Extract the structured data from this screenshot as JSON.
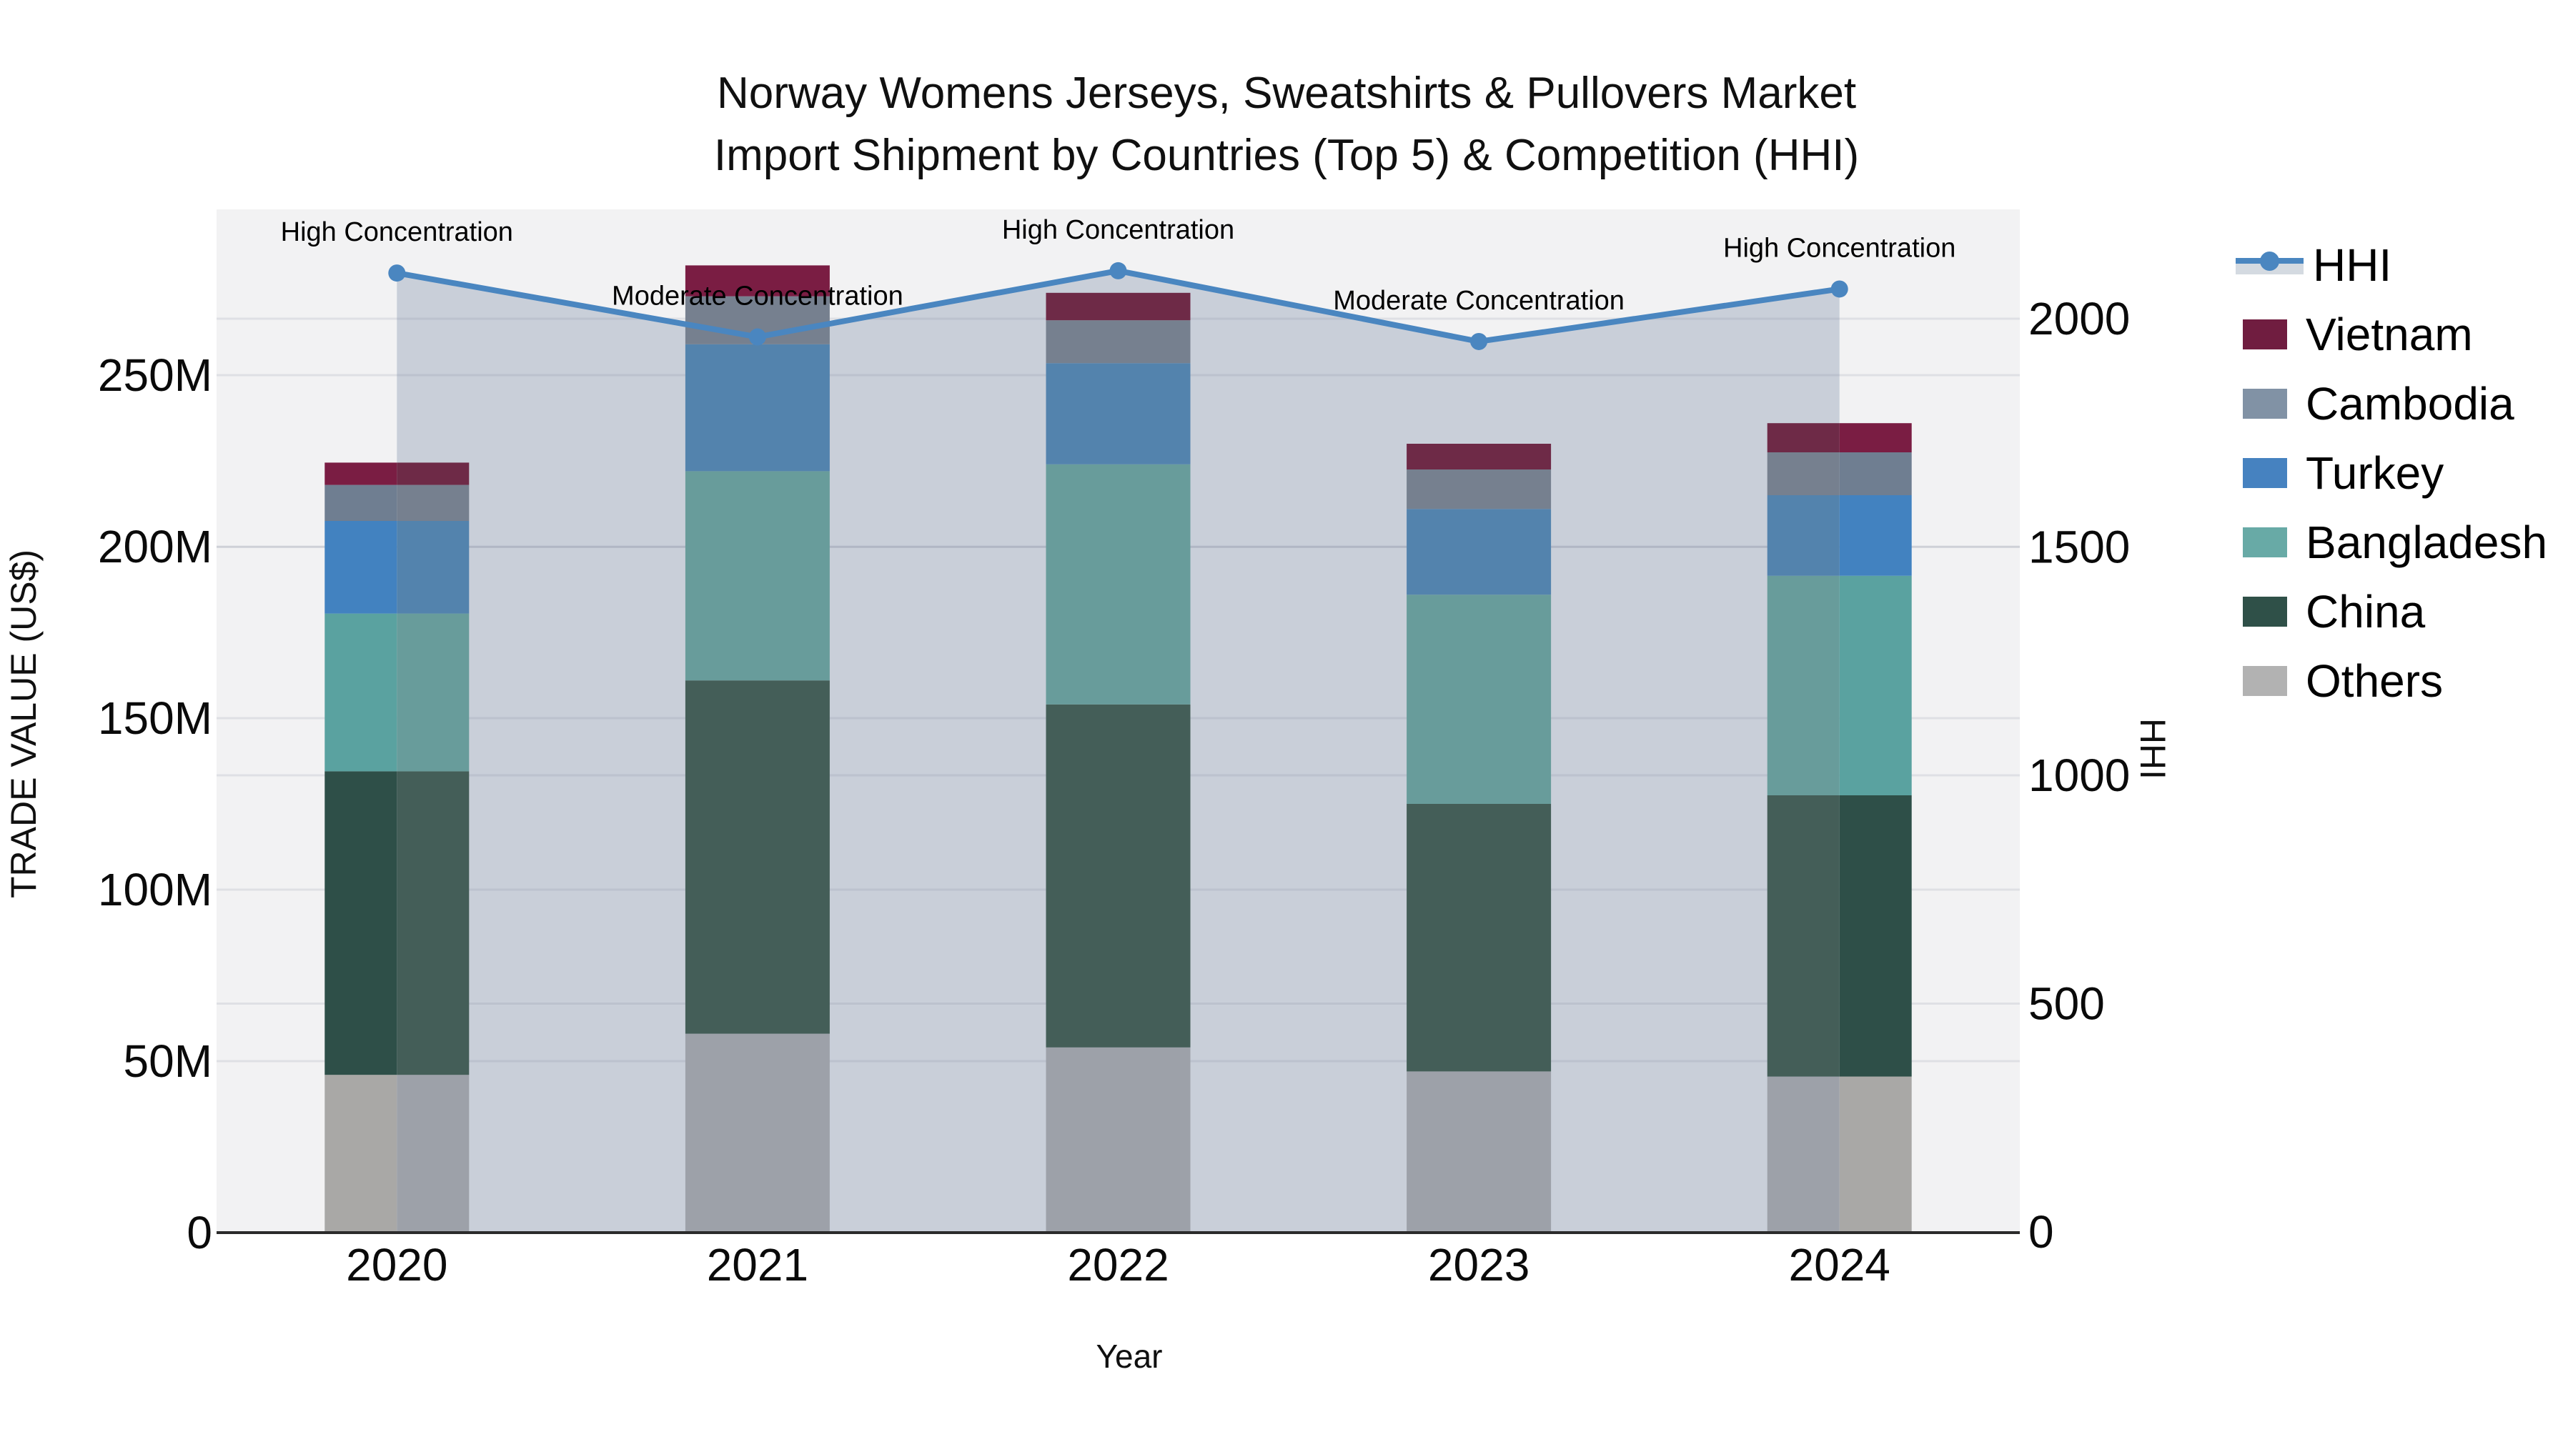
{
  "title": {
    "line1": "Norway Womens Jerseys, Sweatshirts & Pullovers Market",
    "line2": "Import Shipment by Countries (Top 5) & Competition (HHI)"
  },
  "axes": {
    "x": {
      "title": "Year",
      "tick_labels": [
        "2020",
        "2021",
        "2022",
        "2023",
        "2024"
      ]
    },
    "y_left": {
      "title": "TRADE VALUE (US$)",
      "tick_labels": [
        "0",
        "50M",
        "100M",
        "150M",
        "200M",
        "250M"
      ],
      "tick_values": [
        0,
        50,
        100,
        150,
        200,
        250
      ],
      "range": [
        0,
        297
      ]
    },
    "y_right": {
      "title": "HHI",
      "tick_labels": [
        "0",
        "500",
        "1000",
        "1500",
        "2000"
      ],
      "tick_values": [
        0,
        500,
        1000,
        1500,
        2000
      ],
      "range": [
        0,
        2233
      ]
    }
  },
  "legend": {
    "items": [
      {
        "label": "HHI",
        "type": "line",
        "line_color": "#4a86c0",
        "area_color": "#d4dae1"
      },
      {
        "label": "Vietnam",
        "type": "swatch",
        "color": "#701d40"
      },
      {
        "label": "Cambodia",
        "type": "swatch",
        "color": "#8192a5"
      },
      {
        "label": "Turkey",
        "type": "swatch",
        "color": "#4682c0"
      },
      {
        "label": "Bangladesh",
        "type": "swatch",
        "color": "#68aaa6"
      },
      {
        "label": "China",
        "type": "swatch",
        "color": "#2f5048"
      },
      {
        "label": "Others",
        "type": "swatch",
        "color": "#b2b2b2"
      }
    ]
  },
  "chart_data": {
    "type": "bar+line",
    "title": "Norway Womens Jerseys, Sweatshirts & Pullovers Market Import Shipment by Countries (Top 5) & Competition (HHI)",
    "categories": [
      "2020",
      "2021",
      "2022",
      "2023",
      "2024"
    ],
    "bar_unit": "million US$ (left axis)",
    "stack_order_bottom_to_top": [
      "Others",
      "China",
      "Bangladesh",
      "Turkey",
      "Cambodia",
      "Vietnam"
    ],
    "series": [
      {
        "name": "Others",
        "values": [
          46,
          58,
          54,
          47,
          45.5
        ]
      },
      {
        "name": "China",
        "values": [
          88.5,
          103,
          100,
          78,
          82
        ]
      },
      {
        "name": "Bangladesh",
        "values": [
          46,
          61,
          70,
          61,
          64
        ]
      },
      {
        "name": "Turkey",
        "values": [
          27,
          37,
          29.5,
          25,
          23.5
        ]
      },
      {
        "name": "Cambodia",
        "values": [
          10.5,
          14,
          12.5,
          11.5,
          12.5
        ]
      },
      {
        "name": "Vietnam",
        "values": [
          6.5,
          9,
          8,
          7.5,
          8.5
        ]
      }
    ],
    "bar_totals": [
      224.5,
      282,
      274,
      230,
      236
    ],
    "hhi_line": {
      "name": "HHI",
      "axis": "right",
      "values": [
        2100,
        1960,
        2105,
        1950,
        2065
      ]
    },
    "annotations": [
      {
        "x": "2020",
        "text": "High Concentration"
      },
      {
        "x": "2021",
        "text": "Moderate Concentration"
      },
      {
        "x": "2022",
        "text": "High Concentration"
      },
      {
        "x": "2023",
        "text": "Moderate Concentration"
      },
      {
        "x": "2024",
        "text": "High Concentration"
      }
    ],
    "grid": "horizontal",
    "legend_position": "right",
    "xlabel": "Year",
    "ylabel_left": "TRADE VALUE (US$)",
    "ylabel_right": "HHI"
  },
  "colors": {
    "page_bg": "#ffffff",
    "plot_bg": "#f2f2f3",
    "area_fill": "#c9cfd9",
    "gridline": "rgba(100,112,134,0.13)",
    "hhi_line": "#4a86c0",
    "axis_line": "#2b2b2b",
    "text": "#111111",
    "bar_pure": {
      "Vietnam": "#7a1d43",
      "Cambodia": "#6f7e91",
      "Turkey": "#4282c0",
      "Bangladesh": "#5aa2a0",
      "China": "#2e4f48",
      "Others": "#a9a8a6"
    },
    "bar_muted": {
      "Vietnam": "#6e2a47",
      "Cambodia": "#76808f",
      "Turkey": "#5383ad",
      "Bangladesh": "#689c9b",
      "China": "#445e58",
      "Others": "#9da1a9"
    }
  }
}
